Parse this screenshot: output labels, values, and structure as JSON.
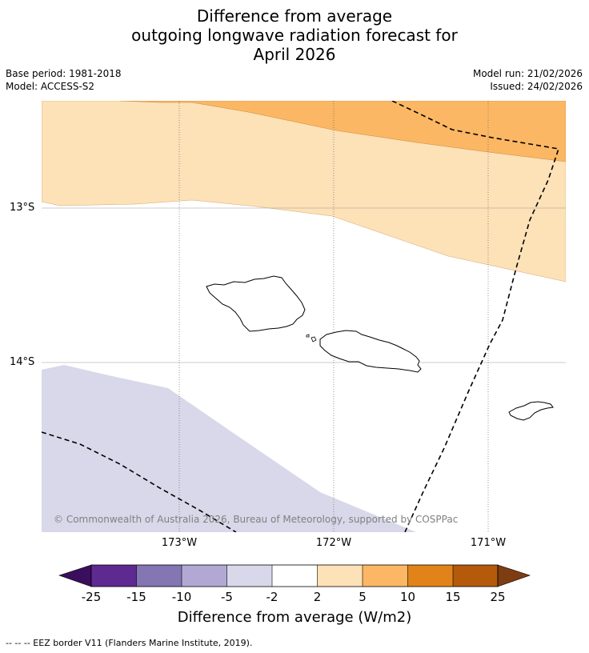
{
  "title": {
    "line1": "Difference from average",
    "line2": "outgoing longwave radiation forecast for",
    "line3": "April 2026"
  },
  "meta": {
    "base_period": "Base period: 1981-2018",
    "model": "Model: ACCESS-S2",
    "model_run": "Model run: 21/02/2026",
    "issued": "Issued: 24/02/2026"
  },
  "axes": {
    "latitudes": [
      "13°S",
      "14°S"
    ],
    "longitudes": [
      "173°W",
      "172°W",
      "171°W"
    ]
  },
  "copyright": "© Commonwealth of Australia 2026, Bureau of Meteorology, supported by COSPPac",
  "legend": {
    "ticks": [
      "-25",
      "-15",
      "-10",
      "-5",
      "-2",
      "2",
      "5",
      "10",
      "15",
      "25"
    ],
    "colors": [
      "#3a0e5c",
      "#5e2a91",
      "#8476b3",
      "#b1a9d3",
      "#d8d8ea",
      "#ffffff",
      "#fde1b7",
      "#fbb763",
      "#e2831a",
      "#b45a0a",
      "#7e3d10"
    ],
    "label": "Difference from average (W/m2)"
  },
  "eez_note": "--  --  -- EEZ border V11 (Flanders Marine Institute, 2019)."
}
